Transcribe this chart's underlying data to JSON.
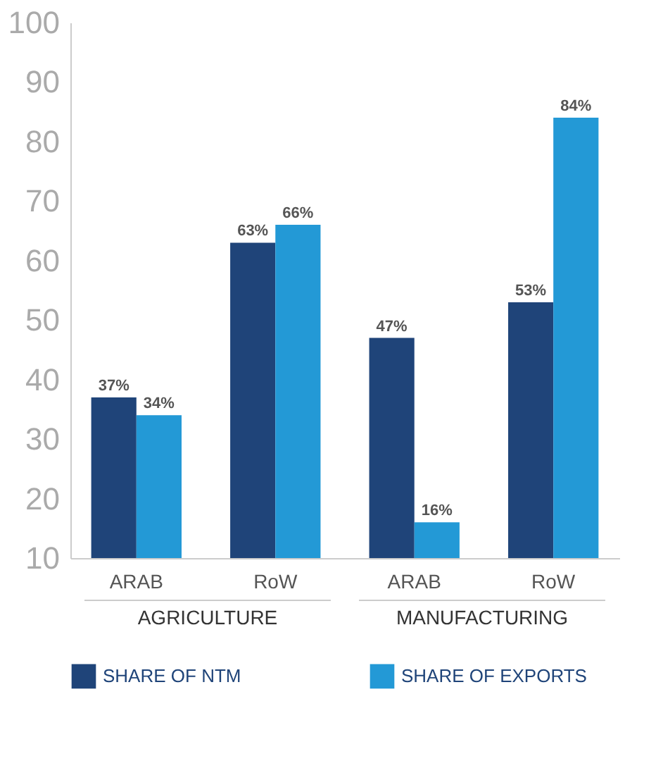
{
  "chart_data": {
    "type": "bar",
    "categories": [
      "ARAB",
      "RoW",
      "ARAB",
      "RoW"
    ],
    "series": [
      {
        "name": "SHARE OF NTM",
        "color": "#1f4479",
        "values": [
          37,
          63,
          47,
          53
        ],
        "value_labels": [
          "37%",
          "63%",
          "47%",
          "53%"
        ]
      },
      {
        "name": "SHARE OF EXPORTS",
        "color": "#2399d6",
        "values": [
          34,
          66,
          16,
          84
        ],
        "value_labels": [
          "34%",
          "66%",
          "16%",
          "84%"
        ]
      }
    ],
    "annotations": [
      "AGRICULTURE",
      "MANUFACTURING"
    ],
    "ylim": [
      10,
      100
    ],
    "yticks": [
      10,
      20,
      30,
      40,
      50,
      60,
      70,
      80,
      90,
      100
    ],
    "grid": false,
    "legend": "bottom"
  }
}
